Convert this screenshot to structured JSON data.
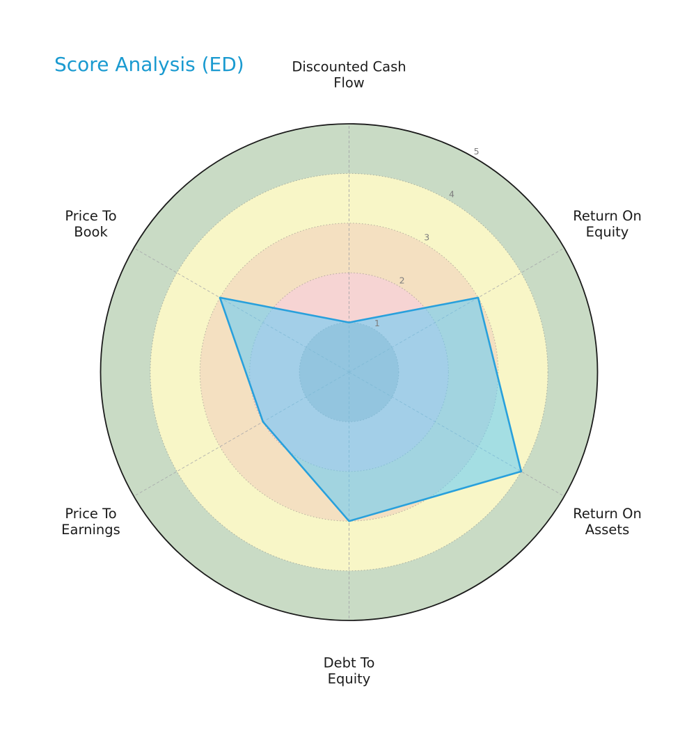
{
  "title": {
    "text": "Score Analysis (ED)",
    "color": "#1a9ad0"
  },
  "chart_data": {
    "type": "radar",
    "title": "Score Analysis (ED)",
    "categories": [
      "Discounted Cash Flow",
      "Return On Equity",
      "Return On Assets",
      "Debt To Equity",
      "Price To Earnings",
      "Price To Book"
    ],
    "category_lines": [
      [
        "Discounted Cash",
        "Flow"
      ],
      [
        "Return On",
        "Equity"
      ],
      [
        "Return On",
        "Assets"
      ],
      [
        "Debt To",
        "Equity"
      ],
      [
        "Price To",
        "Earnings"
      ],
      [
        "Price To",
        "Book"
      ]
    ],
    "series": [
      {
        "name": "ED",
        "values": [
          1,
          3,
          4,
          3,
          2,
          3
        ],
        "line_color": "#28a0dc",
        "fill_color": "rgba(95,203,249,0.55)"
      }
    ],
    "r_axis": {
      "min": 0,
      "max": 5,
      "ticks": [
        1,
        2,
        3,
        4,
        5
      ],
      "tick_label_angle_deg": 60,
      "tick_color": "#7d7d7d"
    },
    "bands": [
      {
        "from": 0,
        "to": 1,
        "color": "#d2bfbe"
      },
      {
        "from": 1,
        "to": 2,
        "color": "#f6d4d3"
      },
      {
        "from": 2,
        "to": 3,
        "color": "#f4e0c1"
      },
      {
        "from": 3,
        "to": 4,
        "color": "#f8f6c7"
      },
      {
        "from": 4,
        "to": 5,
        "color": "#c9dbc5"
      }
    ],
    "grid": {
      "radial_lines": true,
      "ring_lines": true
    },
    "outer_border_color": "#1b1b1b",
    "legend": null
  }
}
